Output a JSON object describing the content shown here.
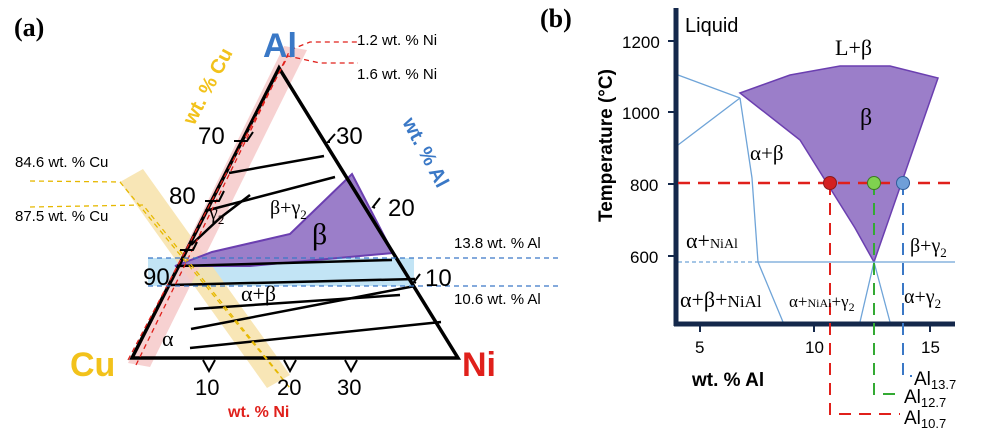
{
  "colors": {
    "cu": "#f2c21b",
    "al": "#3a78c6",
    "ni": "#e0201b",
    "beta_fill": "#9b7ec9",
    "beta_stroke": "#6b3fb0",
    "band_blue": "#bfe3f4",
    "band_yellow": "#f7e2a9",
    "axis_dark": "#14284b",
    "phase_line": "#6fa4d8",
    "green": "#33aa33",
    "dot_red": "#d42020",
    "dot_green": "#7fd14f",
    "dot_blue": "#6f9fd8"
  },
  "panel_a": {
    "label": "(a)",
    "corner_al": "Al",
    "corner_cu": "Cu",
    "corner_ni": "Ni",
    "axis_cu": "wt. % Cu",
    "axis_al": "wt. % Al",
    "axis_ni": "wt. % Ni",
    "ticks_left": [
      "70",
      "80",
      "90"
    ],
    "ticks_right": [
      "30",
      "20",
      "10"
    ],
    "ticks_bottom": [
      "10",
      "20",
      "30"
    ],
    "ni_line_1": "1.2 wt. % Ni",
    "ni_line_2": "1.6 wt. % Ni",
    "cu_line_1": "84.6 wt. % Cu",
    "cu_line_2": "87.5 wt. % Cu",
    "al_line_1": "13.8 wt. % Al",
    "al_line_2": "10.6 wt. % Al",
    "region_gamma2": "γ",
    "region_gamma2_sub": "2",
    "region_beta_gamma2": "β+γ",
    "region_beta_gamma2_sub": "2",
    "region_beta": "β",
    "region_alpha_beta": "α+β",
    "region_alpha": "α"
  },
  "panel_b": {
    "label": "(b)",
    "ylabel": "Temperature (°C)",
    "xlabel": "wt. % Al",
    "yticks": [
      "1200",
      "1000",
      "800",
      "600"
    ],
    "xticks": [
      "5",
      "10",
      "15"
    ],
    "region_liquid": "Liquid",
    "region_l_beta": "L+β",
    "region_beta": "β",
    "region_alpha_beta": "α+β",
    "region_alpha_nial_a": "α+",
    "region_alpha_nial_b": "NiAl",
    "region_ab_nial_a": "α+β+",
    "region_ab_nial_b": "NiAl",
    "region_a_nial_g2_a": "α+",
    "region_a_nial_g2_b": "NiAl",
    "region_a_nial_g2_c": "+γ",
    "region_a_nial_g2_sub": "2",
    "region_beta_g2": "β+γ",
    "region_beta_g2_sub": "2",
    "region_alpha_g2": "α+γ",
    "region_alpha_g2_sub": "2",
    "leg1_main": "Al",
    "leg1_sub": "13.7",
    "leg2_main": "Al",
    "leg2_sub": "12.7",
    "leg3_main": "Al",
    "leg3_sub": "10.7"
  }
}
